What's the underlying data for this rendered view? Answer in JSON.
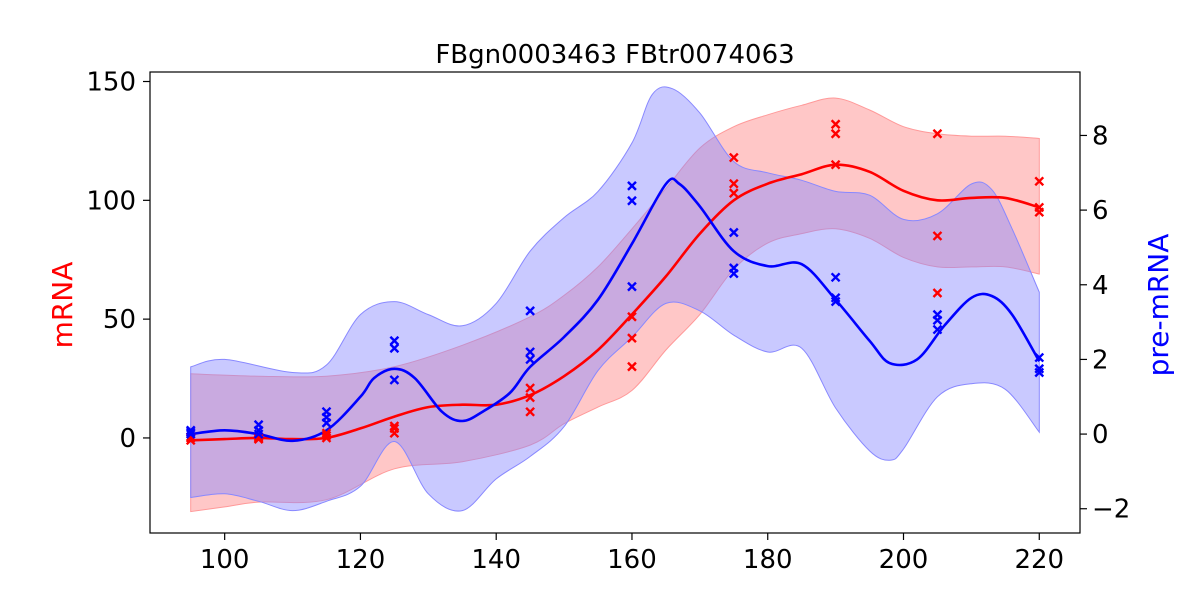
{
  "chart_data": {
    "type": "line",
    "title": "FBgn0003463 FBtr0074063",
    "xlabel": "",
    "ylabel_left": "mRNA",
    "ylabel_right": "pre-mRNA",
    "xlim": [
      89,
      226
    ],
    "ylim_left": [
      -40,
      154
    ],
    "ylim_right": [
      -2.65,
      9.7
    ],
    "x_ticks": [
      100,
      120,
      140,
      160,
      180,
      200,
      220
    ],
    "y_left_ticks": [
      0,
      50,
      100,
      150
    ],
    "y_right_ticks": [
      -2,
      0,
      2,
      4,
      6,
      8
    ],
    "grid": false,
    "colors": {
      "mrna": "#ff0000",
      "premrna": "#0000ff",
      "mrna_band": "#ff9999",
      "premrna_band": "#8888ff"
    },
    "series": [
      {
        "name": "mRNA",
        "axis": "left",
        "color": "#ff0000",
        "mean": [
          [
            95,
            -1
          ],
          [
            100,
            -0.5
          ],
          [
            105,
            0
          ],
          [
            110,
            -0.5
          ],
          [
            115,
            0
          ],
          [
            120,
            4
          ],
          [
            125,
            9
          ],
          [
            130,
            13
          ],
          [
            135,
            14
          ],
          [
            140,
            14
          ],
          [
            145,
            18
          ],
          [
            150,
            26
          ],
          [
            155,
            37
          ],
          [
            160,
            52
          ],
          [
            165,
            68
          ],
          [
            170,
            86
          ],
          [
            175,
            100
          ],
          [
            180,
            107
          ],
          [
            185,
            111
          ],
          [
            190,
            115
          ],
          [
            195,
            112
          ],
          [
            200,
            104
          ],
          [
            205,
            100
          ],
          [
            210,
            101
          ],
          [
            215,
            101
          ],
          [
            220,
            97
          ]
        ],
        "band_upper": [
          [
            95,
            27
          ],
          [
            105,
            26
          ],
          [
            115,
            26
          ],
          [
            125,
            30
          ],
          [
            135,
            39
          ],
          [
            145,
            51
          ],
          [
            150,
            60
          ],
          [
            155,
            72
          ],
          [
            160,
            88
          ],
          [
            165,
            105
          ],
          [
            170,
            122
          ],
          [
            175,
            131
          ],
          [
            180,
            136
          ],
          [
            185,
            140
          ],
          [
            190,
            143
          ],
          [
            195,
            138
          ],
          [
            200,
            131
          ],
          [
            205,
            128
          ],
          [
            210,
            127
          ],
          [
            215,
            127
          ],
          [
            220,
            126
          ]
        ],
        "band_lower": [
          [
            95,
            -31
          ],
          [
            100,
            -29
          ],
          [
            105,
            -27
          ],
          [
            115,
            -26
          ],
          [
            125,
            -13
          ],
          [
            135,
            -10
          ],
          [
            145,
            -3
          ],
          [
            150,
            6
          ],
          [
            155,
            13
          ],
          [
            160,
            20
          ],
          [
            165,
            37
          ],
          [
            170,
            52
          ],
          [
            175,
            71
          ],
          [
            180,
            82
          ],
          [
            185,
            86
          ],
          [
            190,
            88
          ],
          [
            195,
            84
          ],
          [
            200,
            76
          ],
          [
            205,
            72
          ],
          [
            210,
            72
          ],
          [
            215,
            72
          ],
          [
            220,
            69
          ]
        ],
        "points": [
          [
            95,
            -1
          ],
          [
            95,
            0
          ],
          [
            95,
            0.5
          ],
          [
            105,
            -0.5
          ],
          [
            105,
            0
          ],
          [
            105,
            0.5
          ],
          [
            115,
            0
          ],
          [
            115,
            1
          ],
          [
            115,
            2
          ],
          [
            125,
            2
          ],
          [
            125,
            4
          ],
          [
            125,
            5
          ],
          [
            145,
            11
          ],
          [
            145,
            17
          ],
          [
            145,
            21
          ],
          [
            160,
            30
          ],
          [
            160,
            42
          ],
          [
            160,
            51
          ],
          [
            175,
            103
          ],
          [
            175,
            107
          ],
          [
            175,
            118
          ],
          [
            190,
            115
          ],
          [
            190,
            128
          ],
          [
            190,
            132
          ],
          [
            205,
            61
          ],
          [
            205,
            85
          ],
          [
            205,
            128
          ],
          [
            220,
            95
          ],
          [
            220,
            97
          ],
          [
            220,
            108
          ]
        ]
      },
      {
        "name": "pre-mRNA",
        "axis": "right",
        "color": "#0000ff",
        "mean": [
          [
            95,
            0
          ],
          [
            100,
            0.1
          ],
          [
            105,
            0
          ],
          [
            110,
            -0.18
          ],
          [
            115,
            0.1
          ],
          [
            120,
            1
          ],
          [
            122,
            1.5
          ],
          [
            125,
            1.75
          ],
          [
            128,
            1.5
          ],
          [
            132,
            0.6
          ],
          [
            135,
            0.35
          ],
          [
            138,
            0.6
          ],
          [
            142,
            1.1
          ],
          [
            145,
            1.8
          ],
          [
            150,
            2.6
          ],
          [
            155,
            3.6
          ],
          [
            160,
            5.1
          ],
          [
            165,
            6.7
          ],
          [
            167,
            6.7
          ],
          [
            170,
            6.1
          ],
          [
            175,
            4.9
          ],
          [
            180,
            4.5
          ],
          [
            185,
            4.55
          ],
          [
            190,
            3.6
          ],
          [
            195,
            2.5
          ],
          [
            198,
            1.9
          ],
          [
            202,
            2
          ],
          [
            206,
            2.9
          ],
          [
            210,
            3.65
          ],
          [
            213,
            3.7
          ],
          [
            216,
            3.2
          ],
          [
            220,
            1.95
          ]
        ],
        "band_upper": [
          [
            95,
            1.8
          ],
          [
            100,
            2
          ],
          [
            110,
            1.65
          ],
          [
            115,
            1.85
          ],
          [
            120,
            3.2
          ],
          [
            125,
            3.55
          ],
          [
            130,
            3.2
          ],
          [
            135,
            2.9
          ],
          [
            140,
            3.5
          ],
          [
            145,
            4.9
          ],
          [
            150,
            5.8
          ],
          [
            155,
            6.5
          ],
          [
            160,
            7.8
          ],
          [
            163,
            9.1
          ],
          [
            166,
            9.25
          ],
          [
            170,
            8.6
          ],
          [
            175,
            7.3
          ],
          [
            180,
            7
          ],
          [
            185,
            6.8
          ],
          [
            190,
            6.5
          ],
          [
            195,
            6.4
          ],
          [
            200,
            5.75
          ],
          [
            205,
            5.9
          ],
          [
            210,
            6.7
          ],
          [
            213,
            6.55
          ],
          [
            216,
            5.5
          ],
          [
            220,
            3.8
          ]
        ],
        "band_lower": [
          [
            95,
            -1.7
          ],
          [
            100,
            -1.6
          ],
          [
            105,
            -1.8
          ],
          [
            110,
            -2.05
          ],
          [
            115,
            -1.8
          ],
          [
            120,
            -1.4
          ],
          [
            125,
            -0.2
          ],
          [
            130,
            -1.6
          ],
          [
            135,
            -2.05
          ],
          [
            140,
            -1.2
          ],
          [
            145,
            -0.6
          ],
          [
            150,
            0.2
          ],
          [
            155,
            1.7
          ],
          [
            160,
            2.6
          ],
          [
            165,
            3.5
          ],
          [
            170,
            3.3
          ],
          [
            175,
            2.65
          ],
          [
            180,
            2.2
          ],
          [
            185,
            2.3
          ],
          [
            190,
            0.7
          ],
          [
            195,
            -0.45
          ],
          [
            198,
            -0.7
          ],
          [
            200,
            -0.4
          ],
          [
            205,
            1
          ],
          [
            210,
            1.35
          ],
          [
            215,
            1.2
          ],
          [
            220,
            0.05
          ]
        ],
        "points": [
          [
            95,
            0
          ],
          [
            95,
            0.05
          ],
          [
            95,
            0.1
          ],
          [
            105,
            0
          ],
          [
            105,
            0.1
          ],
          [
            105,
            0.25
          ],
          [
            115,
            0.3
          ],
          [
            115,
            0.45
          ],
          [
            115,
            0.6
          ],
          [
            125,
            1.45
          ],
          [
            125,
            2.3
          ],
          [
            125,
            2.5
          ],
          [
            145,
            2
          ],
          [
            145,
            2.2
          ],
          [
            145,
            3.3
          ],
          [
            160,
            3.95
          ],
          [
            160,
            6.25
          ],
          [
            160,
            6.65
          ],
          [
            175,
            4.3
          ],
          [
            175,
            4.45
          ],
          [
            175,
            5.4
          ],
          [
            190,
            3.55
          ],
          [
            190,
            3.65
          ],
          [
            190,
            4.2
          ],
          [
            205,
            2.8
          ],
          [
            205,
            3.05
          ],
          [
            205,
            3.2
          ],
          [
            220,
            1.65
          ],
          [
            220,
            1.75
          ],
          [
            220,
            2.05
          ]
        ]
      }
    ]
  }
}
